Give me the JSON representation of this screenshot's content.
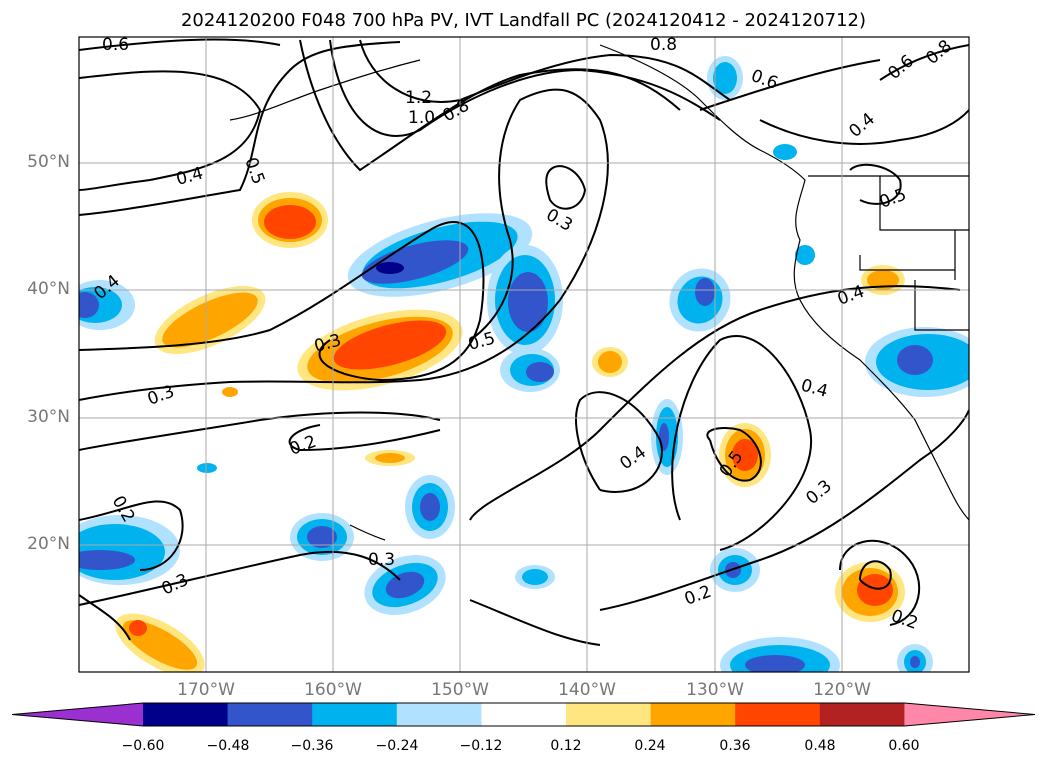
{
  "title": "2024120200 F048 700 hPa PV, IVT Landfall PC (2024120412 - 2024120712)",
  "lat_labels": [
    "50°N",
    "40°N",
    "30°N",
    "20°N"
  ],
  "lon_labels": [
    "170°W",
    "160°W",
    "150°W",
    "140°W",
    "130°W",
    "120°W"
  ],
  "contour_labels": [
    "0.6",
    "1.2",
    "1.0",
    "0.8",
    "0.5",
    "0.4",
    "0.3",
    "0.5",
    "0.4",
    "0.3",
    "0.2",
    "0.2",
    "0.3",
    "0.3",
    "0.3",
    "0.4",
    "0.5",
    "0.4",
    "0.3",
    "0.2",
    "0.2",
    "0.8",
    "0.6",
    "0.4",
    "0.5",
    "0.4",
    "0.6",
    "0.8"
  ],
  "colorbar": {
    "tick_labels": [
      "−0.60",
      "−0.48",
      "−0.36",
      "−0.24",
      "−0.12",
      "0.12",
      "0.24",
      "0.36",
      "0.48",
      "0.60"
    ],
    "colors": [
      "#9b30d0",
      "#00008b",
      "#3355cc",
      "#00b2ee",
      "#b0e2ff",
      "#ffffff",
      "#ffe680",
      "#ffa500",
      "#ff4500",
      "#b22222",
      "#ff88aa"
    ]
  },
  "colors": {
    "neg_weak": "#b0e2ff",
    "neg_mid": "#00b2ee",
    "neg_strong": "#3355cc",
    "neg_max": "#00008b",
    "pos_weak": "#ffe680",
    "pos_mid": "#ffa500",
    "pos_strong": "#ff4500",
    "pos_max": "#b22222"
  }
}
